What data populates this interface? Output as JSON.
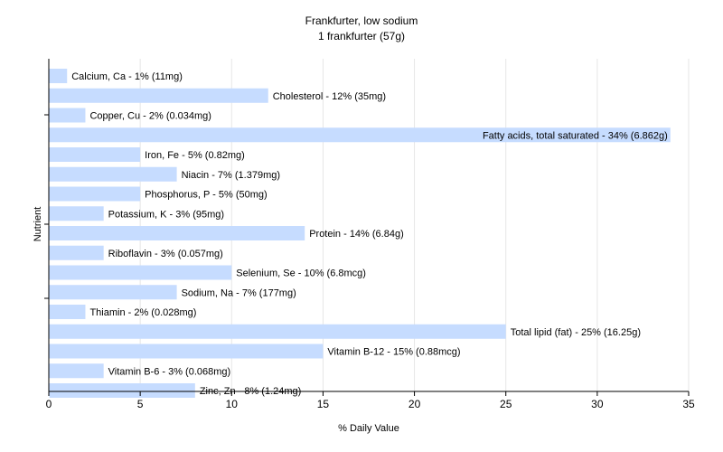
{
  "chart_data": {
    "type": "bar",
    "orientation": "horizontal",
    "title": "Frankfurter, low sodium",
    "subtitle": "1 frankfurter (57g)",
    "xlabel": "% Daily Value",
    "ylabel": "Nutrient",
    "xlim": [
      0,
      35
    ],
    "xticks": [
      0,
      5,
      10,
      15,
      20,
      25,
      30,
      35
    ],
    "grid": true,
    "bar_color": "#c6dcff",
    "grid_color": "#e6e6e6",
    "bars": [
      {
        "value": 1,
        "label": "Calcium, Ca - 1% (11mg)"
      },
      {
        "value": 12,
        "label": "Cholesterol - 12% (35mg)"
      },
      {
        "value": 2,
        "label": "Copper, Cu - 2% (0.034mg)"
      },
      {
        "value": 34,
        "label": "Fatty acids, total saturated - 34% (6.862g)"
      },
      {
        "value": 5,
        "label": "Iron, Fe - 5% (0.82mg)"
      },
      {
        "value": 7,
        "label": "Niacin - 7% (1.379mg)"
      },
      {
        "value": 5,
        "label": "Phosphorus, P - 5% (50mg)"
      },
      {
        "value": 3,
        "label": "Potassium, K - 3% (95mg)"
      },
      {
        "value": 14,
        "label": "Protein - 14% (6.84g)"
      },
      {
        "value": 3,
        "label": "Riboflavin - 3% (0.057mg)"
      },
      {
        "value": 10,
        "label": "Selenium, Se - 10% (6.8mcg)"
      },
      {
        "value": 7,
        "label": "Sodium, Na - 7% (177mg)"
      },
      {
        "value": 2,
        "label": "Thiamin - 2% (0.028mg)"
      },
      {
        "value": 25,
        "label": "Total lipid (fat) - 25% (16.25g)"
      },
      {
        "value": 15,
        "label": "Vitamin B-12 - 15% (0.88mcg)"
      },
      {
        "value": 3,
        "label": "Vitamin B-6 - 3% (0.068mg)"
      },
      {
        "value": 8,
        "label": "Zinc, Zn - 8% (1.24mg)"
      }
    ]
  }
}
